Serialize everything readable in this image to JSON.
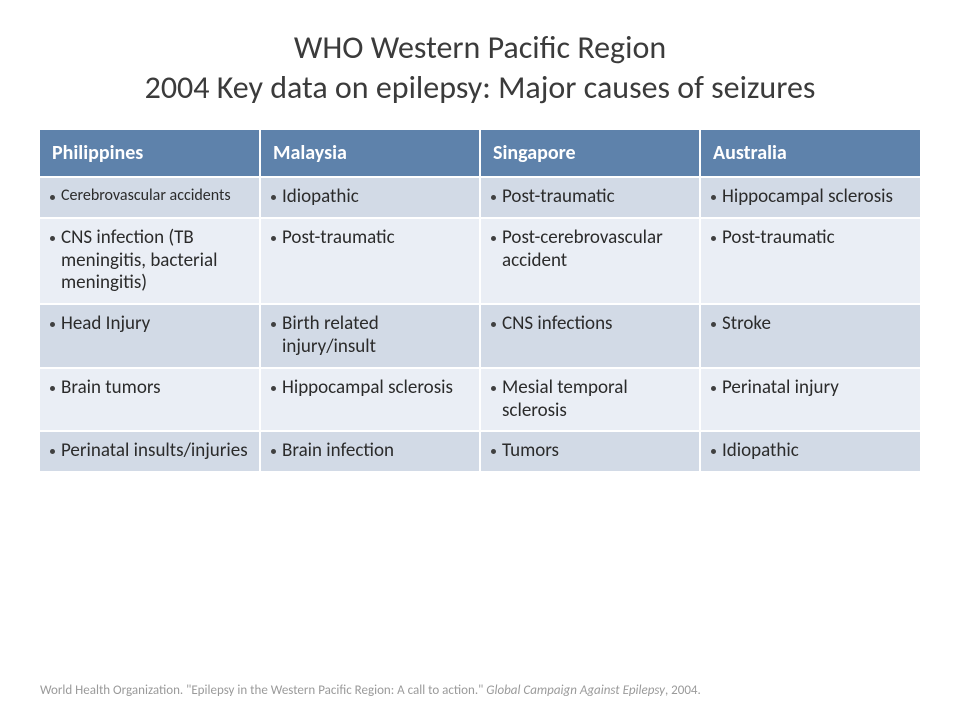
{
  "title": {
    "line1": "WHO Western Pacific Region",
    "line2": "2004 Key data on epilepsy: Major causes of seizures"
  },
  "table": {
    "header_bg": "#5e82ab",
    "header_fg": "#ffffff",
    "row_bg_odd": "#d2dae6",
    "row_bg_even": "#eaeef5",
    "border_color": "#ffffff",
    "columns": [
      "Philippines",
      "Malaysia",
      "Singapore",
      "Australia"
    ],
    "rows": [
      {
        "cells": [
          {
            "text": "Cerebrovascular accidents",
            "small": true
          },
          {
            "text": "Idiopathic",
            "small": false
          },
          {
            "text": "Post-traumatic",
            "small": false
          },
          {
            "text": "Hippocampal sclerosis",
            "small": false
          }
        ]
      },
      {
        "cells": [
          {
            "text": "CNS infection (TB meningitis, bacterial meningitis)",
            "small": false
          },
          {
            "text": "Post-traumatic",
            "small": false
          },
          {
            "text": "Post-cerebrovascular accident",
            "small": false
          },
          {
            "text": "Post-traumatic",
            "small": false
          }
        ]
      },
      {
        "cells": [
          {
            "text": "Head Injury",
            "small": false
          },
          {
            "text": "Birth related injury/insult",
            "small": false
          },
          {
            "text": "CNS infections",
            "small": false
          },
          {
            "text": "Stroke",
            "small": false
          }
        ]
      },
      {
        "cells": [
          {
            "text": "Brain tumors",
            "small": false
          },
          {
            "text": "Hippocampal sclerosis",
            "small": false
          },
          {
            "text": "Mesial temporal sclerosis",
            "small": false
          },
          {
            "text": "Perinatal injury",
            "small": false
          }
        ]
      },
      {
        "cells": [
          {
            "text": "Perinatal insults/injuries",
            "small": false
          },
          {
            "text": "Brain infection",
            "small": false
          },
          {
            "text": "Tumors",
            "small": false
          },
          {
            "text": "Idiopathic",
            "small": false
          }
        ]
      }
    ]
  },
  "citation": {
    "prefix": "World Health Organization. \"Epilepsy in the Western Pacific Region: A call to action.\" ",
    "italic": "Global Campaign Against Epilepsy",
    "suffix": ", 2004."
  }
}
